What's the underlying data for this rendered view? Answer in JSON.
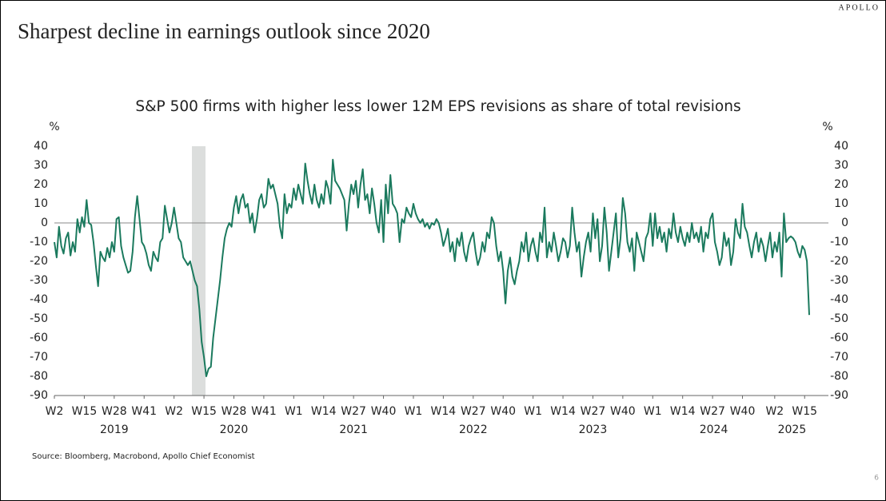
{
  "chart_data": {
    "type": "line",
    "brand": "APOLLO",
    "title": "Sharpest decline in earnings outlook since 2020",
    "subtitle": "S&P 500 firms with higher less lower 12M EPS revisions as share of total revisions",
    "y_unit": "%",
    "y2_unit": "%",
    "source": "Source: Bloomberg, Macrobond, Apollo Chief Economist",
    "page_number": "6",
    "color": "#1b7a5e",
    "categories": [
      "W2",
      null,
      null,
      null,
      null,
      null,
      null,
      null,
      null,
      null,
      null,
      null,
      null,
      "W15",
      null,
      null,
      null,
      null,
      null,
      null,
      null,
      null,
      null,
      null,
      null,
      null,
      "W28",
      null,
      null,
      null,
      null,
      null,
      null,
      null,
      null,
      null,
      null,
      null,
      null,
      "W41",
      null,
      null,
      null,
      null,
      null,
      null,
      null,
      null,
      null,
      null,
      null,
      null,
      "W2",
      null,
      null,
      null,
      null,
      null,
      null,
      null,
      null,
      null,
      null,
      null,
      null,
      "W15",
      null,
      null,
      null,
      null,
      null,
      null,
      null,
      null,
      null,
      null,
      null,
      null,
      "W28",
      null,
      null,
      null,
      null,
      null,
      null,
      null,
      null,
      null,
      null,
      null,
      null,
      "W41",
      null,
      null,
      null,
      null,
      null,
      null,
      null,
      null,
      null,
      null,
      null,
      null,
      "W1",
      null,
      null,
      null,
      null,
      null,
      null,
      null,
      null,
      null,
      null,
      null,
      null,
      "W14",
      null,
      null,
      null,
      null,
      null,
      null,
      null,
      null,
      null,
      null,
      null,
      null,
      "W27",
      null,
      null,
      null,
      null,
      null,
      null,
      null,
      null,
      null,
      null,
      null,
      null,
      "W40",
      null,
      null,
      null,
      null,
      null,
      null,
      null,
      null,
      null,
      null,
      null,
      null,
      "W1",
      null,
      null,
      null,
      null,
      null,
      null,
      null,
      null,
      null,
      null,
      null,
      null,
      "W14",
      null,
      null,
      null,
      null,
      null,
      null,
      null,
      null,
      null,
      null,
      null,
      null,
      "W27",
      null,
      null,
      null,
      null,
      null,
      null,
      null,
      null,
      null,
      null,
      null,
      null,
      "W40",
      null,
      null,
      null,
      null,
      null,
      null,
      null,
      null,
      null,
      null,
      null,
      null,
      "W1",
      null,
      null,
      null,
      null,
      null,
      null,
      null,
      null,
      null,
      null,
      null,
      null,
      "W14",
      null,
      null,
      null,
      null,
      null,
      null,
      null,
      null,
      null,
      null,
      null,
      null,
      "W27",
      null,
      null,
      null,
      null,
      null,
      null,
      null,
      null,
      null,
      null,
      null,
      null,
      "W40",
      null,
      null,
      null,
      null,
      null,
      null,
      null,
      null,
      null,
      null,
      null,
      null,
      "W1",
      null,
      null,
      null,
      null,
      null,
      null,
      null,
      null,
      null,
      null,
      null,
      null,
      "W14",
      null,
      null,
      null,
      null,
      null,
      null,
      null,
      null,
      null,
      null,
      null,
      null,
      "W27",
      null,
      null,
      null,
      null,
      null,
      null,
      null,
      null,
      null,
      null,
      null,
      null,
      "W40",
      null,
      null,
      null,
      null,
      null,
      null,
      null,
      null,
      null,
      null,
      null,
      null,
      null,
      "W2",
      null,
      null,
      null,
      null,
      null,
      null,
      null,
      null,
      null,
      null,
      null,
      null,
      "W15",
      null,
      null
    ],
    "years": [
      "2019",
      "2020",
      "2021",
      "2022",
      "2023",
      "2024",
      "2025"
    ],
    "values": [
      -10,
      -18,
      -2,
      -12,
      -16,
      -8,
      -5,
      -17,
      -10,
      -15,
      2,
      -5,
      3,
      -2,
      12,
      0,
      -1,
      -10,
      -22,
      -33,
      -15,
      -18,
      -20,
      -13,
      -18,
      -10,
      -15,
      2,
      3,
      -12,
      -18,
      -22,
      -26,
      -25,
      -15,
      3,
      14,
      2,
      -10,
      -12,
      -16,
      -22,
      -25,
      -15,
      -18,
      -20,
      -10,
      -8,
      9,
      2,
      -5,
      0,
      8,
      0,
      -8,
      -10,
      -18,
      -20,
      -22,
      -20,
      -25,
      -30,
      -33,
      -45,
      -62,
      -70,
      -80,
      -76,
      -75,
      -60,
      -50,
      -40,
      -30,
      -18,
      -8,
      -3,
      0,
      -2,
      8,
      14,
      5,
      12,
      15,
      8,
      10,
      0,
      5,
      -5,
      2,
      12,
      15,
      8,
      10,
      23,
      18,
      20,
      15,
      10,
      -2,
      -8,
      15,
      5,
      10,
      8,
      18,
      12,
      20,
      15,
      10,
      31,
      22,
      15,
      10,
      20,
      12,
      8,
      15,
      10,
      22,
      18,
      10,
      33,
      22,
      20,
      18,
      15,
      12,
      -4,
      10,
      20,
      15,
      22,
      8,
      20,
      28,
      12,
      15,
      5,
      18,
      10,
      0,
      -5,
      12,
      -10,
      20,
      5,
      25,
      10,
      8,
      5,
      -10,
      2,
      0,
      8,
      5,
      3,
      10,
      5,
      2,
      0,
      2,
      -2,
      0,
      -3,
      0,
      -1,
      2,
      0,
      -5,
      -12,
      -8,
      -3,
      -15,
      -10,
      -20,
      -8,
      -12,
      -5,
      -15,
      -20,
      -12,
      -8,
      -5,
      -15,
      -22,
      -18,
      -10,
      -15,
      -5,
      -8,
      3,
      0,
      -12,
      -20,
      -15,
      -25,
      -42,
      -25,
      -18,
      -28,
      -32,
      -25,
      -20,
      -10,
      -15,
      -5,
      -20,
      -12,
      -8,
      -15,
      -20,
      -5,
      -10,
      8,
      -18,
      -10,
      -15,
      -5,
      -12,
      -20,
      -15,
      -8,
      -10,
      -18,
      -12,
      8,
      -5,
      -15,
      -10,
      -28,
      -18,
      -10,
      -5,
      -15,
      5,
      -8,
      2,
      -20,
      -12,
      8,
      -5,
      -25,
      -15,
      -5,
      5,
      -18,
      -8,
      13,
      5,
      -10,
      -15,
      -8,
      -25,
      -5,
      -10,
      -15,
      -20,
      -8,
      -5,
      5,
      -12,
      5,
      -8,
      -2,
      -10,
      -5,
      -15,
      -3,
      -8,
      5,
      -5,
      -10,
      -2,
      -8,
      -12,
      -5,
      -10,
      0,
      -8,
      -5,
      -10,
      -2,
      -15,
      -5,
      -8,
      2,
      5,
      -10,
      -15,
      -22,
      -18,
      -5,
      -12,
      -8,
      -22,
      -15,
      2,
      -5,
      -8,
      10,
      -2,
      -5,
      -12,
      -18,
      -10,
      -5,
      -15,
      -8,
      -12,
      -20,
      -12,
      -5,
      -18,
      -10,
      -15,
      -5,
      -28,
      5,
      -10,
      -8,
      -7,
      -8,
      -10,
      -15,
      -18,
      -12,
      -14,
      -20,
      -48
    ],
    "ylim": [
      -90,
      40
    ],
    "yticks": [
      -90,
      -80,
      -70,
      -60,
      -50,
      -40,
      -30,
      -20,
      -10,
      0,
      10,
      20,
      30,
      40
    ],
    "y2lim": [
      -90,
      40
    ],
    "y2ticks": [
      -90,
      -80,
      -70,
      -60,
      -50,
      -40,
      -30,
      -20,
      -10,
      0,
      10,
      20,
      30,
      40
    ],
    "grid": false
  }
}
